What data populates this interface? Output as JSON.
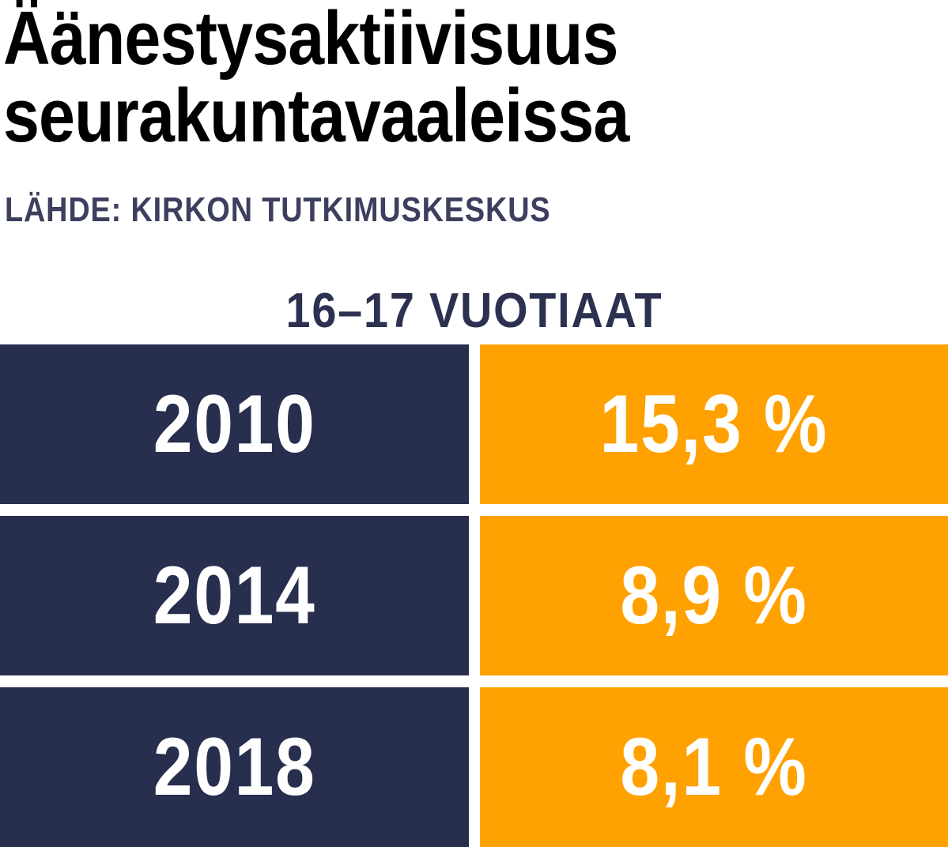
{
  "title_lines": [
    "Äänestysaktiivisuus",
    "seurakuntavaaleissa"
  ],
  "source": "LÄHDE: KIRKON TUTKIMUSKESKUS",
  "colors": {
    "year_cell": "#282e4d",
    "value_cell": "#ffa100",
    "subtitle": "#2c3150",
    "source": "#3d3f5e"
  },
  "chart_data": {
    "type": "table",
    "title": "Äänestysaktiivisuus seurakuntavaaleissa",
    "subtitle": "16–17 VUOTIAAT",
    "source": "LÄHDE: KIRKON TUTKIMUSKESKUS",
    "rows": [
      {
        "year": "2010",
        "value": 15.3,
        "label": "15,3 %"
      },
      {
        "year": "2014",
        "value": 8.9,
        "label": "8,9 %"
      },
      {
        "year": "2018",
        "value": 8.1,
        "label": "8,1 %"
      }
    ]
  }
}
